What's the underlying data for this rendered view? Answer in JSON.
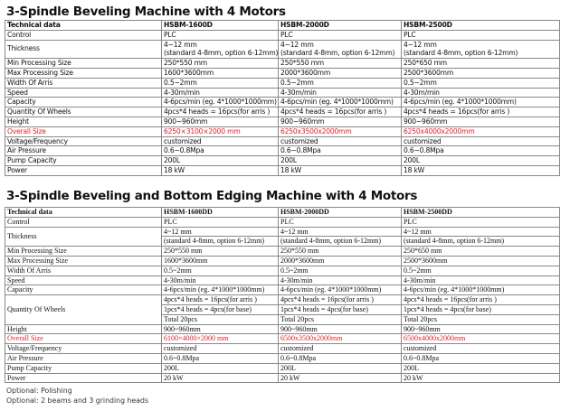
{
  "table1": {
    "title": "3-Spindle Beveling Machine with 4 Motors",
    "header": [
      "Technical data",
      "HSBM-1600D",
      "HSBM-2000D",
      "HSBM-2500D"
    ],
    "rows": [
      {
        "label": "Control",
        "values": [
          [
            "PLC"
          ],
          [
            "PLC"
          ],
          [
            "PLC"
          ]
        ]
      },
      {
        "label": "Thickness",
        "values": [
          [
            "4~12 mm",
            "(standard 4-8mm, option 6-12mm)"
          ],
          [
            "4~12 mm",
            "(standard 4-8mm, option 6-12mm)"
          ],
          [
            "4~12 mm",
            "(standard 4-8mm, option 6-12mm)"
          ]
        ]
      },
      {
        "label": "Min Processing Size",
        "values": [
          [
            "250*550 mm"
          ],
          [
            "250*550 mm"
          ],
          [
            "250*650 mm"
          ]
        ]
      },
      {
        "label": "Max Processing Size",
        "values": [
          [
            "1600*3600mm"
          ],
          [
            "2000*3600mm"
          ],
          [
            "2500*3600mm"
          ]
        ]
      },
      {
        "label": "Width Of Arris",
        "values": [
          [
            "0.5~2mm"
          ],
          [
            "0.5~2mm"
          ],
          [
            "0.5~2mm"
          ]
        ]
      },
      {
        "label": "Speed",
        "values": [
          [
            "4-30m/min"
          ],
          [
            "4-30m/min"
          ],
          [
            "4-30m/min"
          ]
        ]
      },
      {
        "label": "Capacity",
        "values": [
          [
            "4-6pcs/min (eg. 4*1000*1000mm)"
          ],
          [
            "4-6pcs/min (eg. 4*1000*1000mm)"
          ],
          [
            "4-6pcs/min (eg. 4*1000*1000mm)"
          ]
        ]
      },
      {
        "label": "Quantity Of Wheels",
        "values": [
          [
            "4pcs*4 heads = 16pcs(for arris )"
          ],
          [
            "4pcs*4 heads = 16pcs(for arris )"
          ],
          [
            "4pcs*4 heads = 16pcs(for arris )"
          ]
        ]
      },
      {
        "label": "Height",
        "values": [
          [
            "900~960mm"
          ],
          [
            "900~960mm"
          ],
          [
            "900~960mm"
          ]
        ]
      },
      {
        "label": "Overall Size",
        "highlight": true,
        "values": [
          [
            "6250×3100×2000 mm"
          ],
          [
            "6250x3500x2000mm"
          ],
          [
            "6250x4000x2000mm"
          ]
        ]
      },
      {
        "label": "Voltage/Frequency",
        "values": [
          [
            "customized"
          ],
          [
            "customized"
          ],
          [
            "customized"
          ]
        ]
      },
      {
        "label": "Air Pressure",
        "values": [
          [
            "0.6~0.8Mpa"
          ],
          [
            "0.6~0.8Mpa"
          ],
          [
            "0.6~0.8Mpa"
          ]
        ]
      },
      {
        "label": "Pump Capacity",
        "values": [
          [
            "200L"
          ],
          [
            "200L"
          ],
          [
            "200L"
          ]
        ]
      },
      {
        "label": "Power",
        "values": [
          [
            "18 kW"
          ],
          [
            "18 kW"
          ],
          [
            "18 kW"
          ]
        ]
      }
    ]
  },
  "table2": {
    "title": "3-Spindle Beveling and Bottom Edging Machine with 4 Motors",
    "header": [
      "Technical data",
      "HSBM-1600DD",
      "HSBM-2000DD",
      "HSBM-2500DD"
    ],
    "rows": [
      {
        "label": "Control",
        "values": [
          [
            "PLC"
          ],
          [
            "PLC"
          ],
          [
            "PLC"
          ]
        ]
      },
      {
        "label": "Thickness",
        "values": [
          [
            "4~12 mm",
            "(standard 4-8mm, option 6-12mm)"
          ],
          [
            "4~12 mm",
            "(standard 4-8mm, option 6-12mm)"
          ],
          [
            "4~12 mm",
            "(standard 4-8mm, option 6-12mm)"
          ]
        ]
      },
      {
        "label": "Min Processing Size",
        "values": [
          [
            "250*550 mm"
          ],
          [
            "250*550 mm"
          ],
          [
            "250*650 mm"
          ]
        ]
      },
      {
        "label": "Max Processing Size",
        "values": [
          [
            "1600*3600mm"
          ],
          [
            "2000*3600mm"
          ],
          [
            "2500*3600mm"
          ]
        ]
      },
      {
        "label": "Width Of Arris",
        "values": [
          [
            "0.5~2mm"
          ],
          [
            "0.5~2mm"
          ],
          [
            "0.5~2mm"
          ]
        ]
      },
      {
        "label": "Speed",
        "values": [
          [
            "4-30m/min"
          ],
          [
            "4-30m/min"
          ],
          [
            "4-30m/min"
          ]
        ]
      },
      {
        "label": "Capacity",
        "values": [
          [
            "4-6pcs/min (eg. 4*1000*1000mm)"
          ],
          [
            "4-6pcs/min (eg. 4*1000*1000mm)"
          ],
          [
            "4-6pcs/min (eg. 4*1000*1000mm)"
          ]
        ]
      },
      {
        "label": "Quantity Of Wheels",
        "values": [
          [
            "4pcs*4 heads = 16pcs(for arris )",
            "1pcs*4 heads = 4pcs(for base)",
            "Total 20pcs"
          ],
          [
            "4pcs*4 heads = 16pcs(for arris )",
            "1pcs*4 heads = 4pcs(for base)",
            "Total 20pcs"
          ],
          [
            "4pcs*4 heads = 16pcs(for arris )",
            "1pcs*4 heads = 4pcs(for base)",
            "Total 20pcs"
          ]
        ]
      },
      {
        "label": "Height",
        "values": [
          [
            "900~960mm"
          ],
          [
            "900~960mm"
          ],
          [
            "900~960mm"
          ]
        ]
      },
      {
        "label": "Overall Size",
        "highlight": true,
        "values": [
          [
            "6100×4000×2000 mm"
          ],
          [
            "6500x3500x2000mm"
          ],
          [
            "6500x4000x2000mm"
          ]
        ]
      },
      {
        "label": "Voltage/Frequency",
        "values": [
          [
            "customized"
          ],
          [
            "customized"
          ],
          [
            "customized"
          ]
        ]
      },
      {
        "label": "Air Pressure",
        "values": [
          [
            "0.6~0.8Mpa"
          ],
          [
            "0.6~0.8Mpa"
          ],
          [
            "0.6~0.8Mpa"
          ]
        ]
      },
      {
        "label": "Pump Capacity",
        "values": [
          [
            "200L"
          ],
          [
            "200L"
          ],
          [
            "200L"
          ]
        ]
      },
      {
        "label": "Power",
        "values": [
          [
            "20 kW"
          ],
          [
            "20 kW"
          ],
          [
            "20 kW"
          ]
        ]
      }
    ]
  },
  "notes": [
    "Optional: Polishing",
    "Optional: 2 beams and 3 grinding heads"
  ],
  "colors": {
    "highlight": "#e0202a",
    "border": "#888888"
  }
}
